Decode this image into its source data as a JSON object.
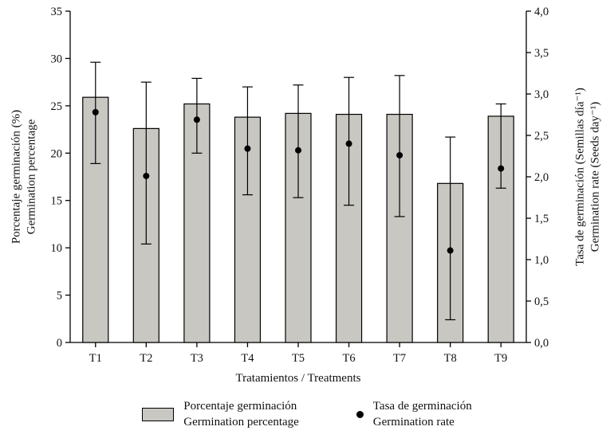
{
  "chart_data": {
    "type": "bar",
    "title": "",
    "categories": [
      "T1",
      "T2",
      "T3",
      "T4",
      "T5",
      "T6",
      "T7",
      "T8",
      "T9"
    ],
    "xlabel": "Tratamientos / Treatments",
    "left_axis": {
      "label_line1": "Porcentaje germinación (%)",
      "label_line2": "Germination percentage",
      "min": 0,
      "max": 35,
      "ticks": [
        0,
        5,
        10,
        15,
        20,
        25,
        30,
        35
      ],
      "tick_labels": [
        "0",
        "5",
        "10",
        "15",
        "20",
        "25",
        "30",
        "35"
      ]
    },
    "right_axis": {
      "label_line1": "Tasa de germinación (Semillas día⁻¹)",
      "label_line2": "Germination rate (Seeds day⁻¹)",
      "min": 0,
      "max": 4,
      "ticks": [
        0,
        0.5,
        1,
        1.5,
        2,
        2.5,
        3,
        3.5,
        4
      ],
      "tick_labels": [
        "0,0",
        "0,5",
        "1,0",
        "1,5",
        "2,0",
        "2,5",
        "3,0",
        "3,5",
        "4,0"
      ]
    },
    "series": [
      {
        "name": "Porcentaje germinación / Germination percentage",
        "type": "bar",
        "axis": "left",
        "values": [
          25.9,
          22.6,
          25.2,
          23.8,
          24.2,
          24.1,
          24.1,
          16.8,
          23.9
        ],
        "err_hi": [
          29.6,
          27.5,
          27.9,
          27.0,
          27.2,
          28.0,
          28.2,
          21.7,
          25.2
        ],
        "err_lo": [
          18.9,
          10.4,
          20.0,
          15.6,
          15.3,
          14.5,
          13.3,
          2.4,
          16.3
        ]
      },
      {
        "name": "Tasa de germinación / Germination rate",
        "type": "scatter",
        "axis": "right",
        "values": [
          2.78,
          2.01,
          2.69,
          2.34,
          2.32,
          2.4,
          2.26,
          1.11,
          2.1
        ]
      }
    ],
    "legend": {
      "position": "bottom",
      "bar": {
        "line1": "Porcentaje germinación",
        "line2": "Germination percentage"
      },
      "dot": {
        "line1": "Tasa de germinación",
        "line2": "Germination rate"
      }
    },
    "grid": false,
    "colors": {
      "bar_fill": "#c8c7c1",
      "stroke": "#000000"
    }
  }
}
